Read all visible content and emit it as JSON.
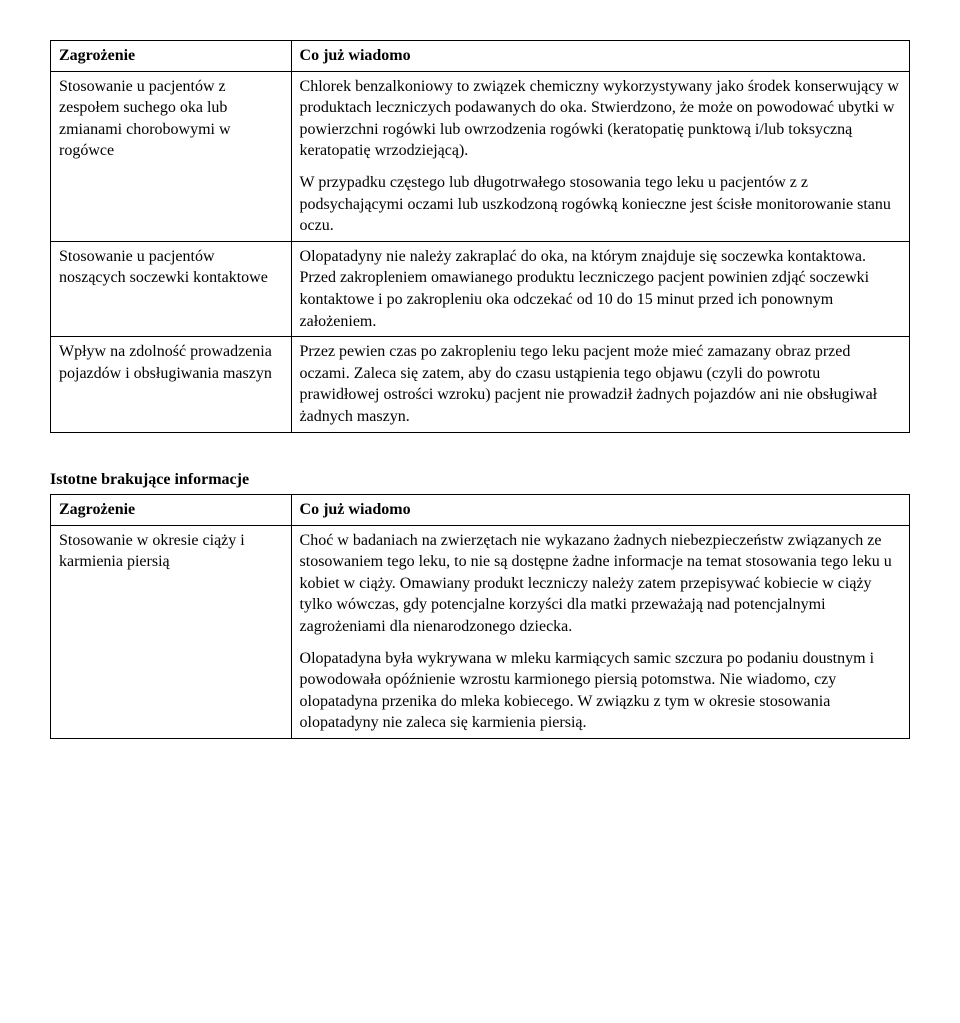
{
  "table1": {
    "header": {
      "left": "Zagrożenie",
      "right": "Co już wiadomo"
    },
    "rows": [
      {
        "left": "Stosowanie u pacjentów z zespołem suchego oka lub zmianami chorobowymi w rogówce",
        "right_p1": "Chlorek benzalkoniowy to związek chemiczny wykorzystywany jako środek konserwujący w produktach leczniczych podawanych do oka. Stwierdzono, że może on powodować ubytki w powierzchni rogówki lub owrzodzenia rogówki (keratopatię punktową i/lub toksyczną keratopatię wrzodziejącą).",
        "right_p2": "W przypadku częstego lub długotrwałego stosowania tego leku u pacjentów z z podsychającymi oczami lub uszkodzoną rogówką konieczne jest ścisłe monitorowanie stanu oczu."
      },
      {
        "left": "Stosowanie u pacjentów noszących soczewki kontaktowe",
        "right": "Olopatadyny nie należy zakraplać do oka, na którym znajduje się soczewka kontaktowa. Przed zakropleniem omawianego produktu leczniczego pacjent powinien zdjąć soczewki kontaktowe i po zakropleniu oka odczekać od 10 do 15 minut przed ich ponownym założeniem."
      },
      {
        "left": "Wpływ na zdolność prowadzenia pojazdów i obsługiwania maszyn",
        "right": "Przez pewien czas po zakropleniu tego leku pacjent może mieć zamazany obraz przed oczami. Zaleca się zatem, aby do czasu ustąpienia tego objawu (czyli do powrotu prawidłowej ostrości wzroku) pacjent nie prowadził żadnych pojazdów ani nie obsługiwał żadnych maszyn."
      }
    ]
  },
  "section2_heading": "Istotne brakujące informacje",
  "table2": {
    "header": {
      "left": "Zagrożenie",
      "right": "Co już wiadomo"
    },
    "rows": [
      {
        "left": "Stosowanie w okresie ciąży i karmienia piersią",
        "right_p1": "Choć w badaniach na zwierzętach nie wykazano żadnych niebezpieczeństw związanych ze stosowaniem tego leku, to nie są dostępne żadne informacje na temat stosowania tego leku u kobiet w ciąży. Omawiany produkt leczniczy należy zatem przepisywać kobiecie w ciąży tylko wówczas, gdy potencjalne korzyści dla matki przeważają nad potencjalnymi zagrożeniami dla nienarodzonego dziecka.",
        "right_p2": "Olopatadyna była wykrywana w mleku karmiących samic szczura po podaniu doustnym i powodowała opóźnienie wzrostu karmionego piersią potomstwa. Nie wiadomo, czy olopatadyna przenika do mleka kobiecego. W związku z tym w okresie stosowania olopatadyny nie zaleca się karmienia piersią."
      }
    ]
  }
}
